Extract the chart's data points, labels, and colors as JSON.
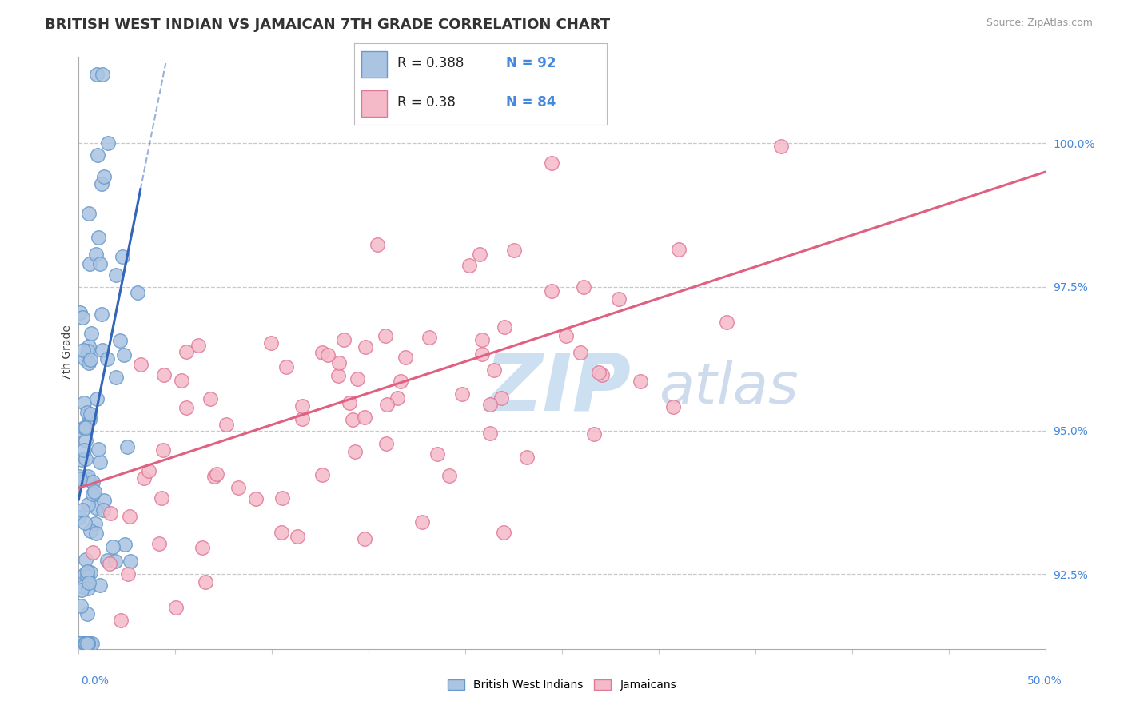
{
  "title": "BRITISH WEST INDIAN VS JAMAICAN 7TH GRADE CORRELATION CHART",
  "source_text": "Source: ZipAtlas.com",
  "ylabel": "7th Grade",
  "right_yticks": [
    92.5,
    95.0,
    97.5,
    100.0
  ],
  "right_ytick_labels": [
    "92.5%",
    "95.0%",
    "97.5%",
    "100.0%"
  ],
  "xlim": [
    0.0,
    50.0
  ],
  "ylim": [
    91.2,
    101.5
  ],
  "blue_R": 0.388,
  "blue_N": 92,
  "pink_R": 0.38,
  "pink_N": 84,
  "blue_color": "#aac4e2",
  "blue_edge_color": "#6699cc",
  "pink_color": "#f4bac8",
  "pink_edge_color": "#e07898",
  "blue_line_color": "#3366bb",
  "pink_line_color": "#e06080",
  "legend_label_blue": "British West Indians",
  "legend_label_pink": "Jamaicans",
  "watermark_zip": "ZIP",
  "watermark_atlas": "atlas",
  "watermark_color_zip": "#c8ddf0",
  "watermark_color_atlas": "#b8cce4",
  "grid_color": "#c8c8c8",
  "title_fontsize": 13,
  "source_fontsize": 9,
  "legend_fontsize": 14
}
